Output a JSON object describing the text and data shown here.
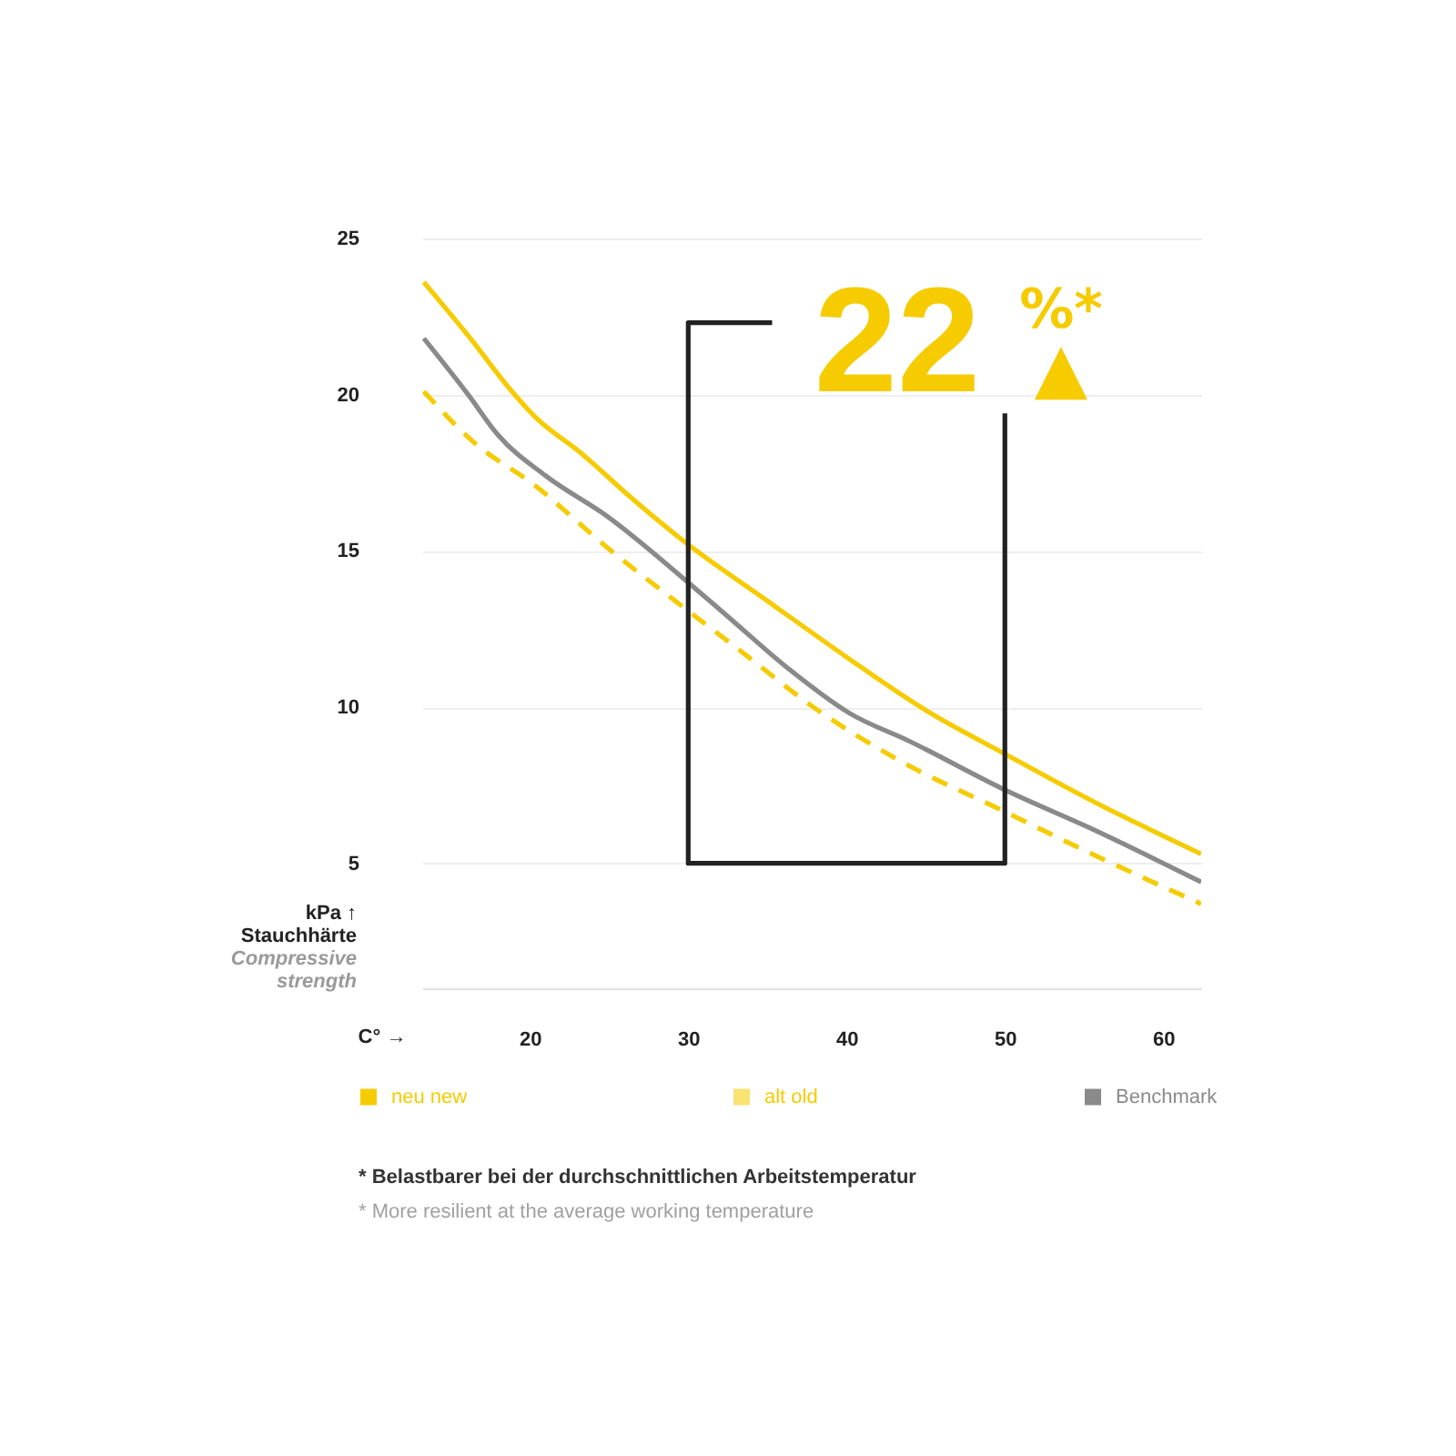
{
  "chart_data": {
    "type": "line",
    "xlabel": "C° →",
    "ylabel": "kPa ↑\nStauchhärte\nCompressive\nstrength",
    "xlim": [
      13.2,
      62.4
    ],
    "xticks": [
      20,
      30,
      40,
      50,
      60
    ],
    "ylim": [
      1,
      25
    ],
    "yticks": [
      5,
      10,
      15,
      20,
      25
    ],
    "grid": "y",
    "legend": "bottom",
    "series": [
      {
        "name": "neu new",
        "color": "#f6cb00",
        "x": [
          13.3,
          16.4,
          18.7,
          20.3,
          23.3,
          26.4,
          30.0,
          35.0,
          40.0,
          45.0,
          50.0,
          55.5,
          62.4
        ],
        "values": [
          23.6,
          21.7,
          20.2,
          19.3,
          18.1,
          16.7,
          15.2,
          13.4,
          11.6,
          9.9,
          8.5,
          7.0,
          5.3
        ]
      },
      {
        "name": "alt old",
        "color": "#f6cb00",
        "line_style": "dashed",
        "x": [
          13.3,
          16.4,
          20.3,
          24.9,
          30.2,
          33.3,
          37.9,
          43.3,
          49.8,
          55.5,
          62.4
        ],
        "values": [
          20.1,
          18.5,
          17.1,
          15.1,
          13.0,
          11.8,
          10.0,
          8.3,
          6.7,
          5.3,
          3.7
        ]
      },
      {
        "name": "Benchmark",
        "color": "#8a8a8a",
        "x": [
          13.3,
          16.1,
          18.0,
          21.0,
          24.9,
          30.2,
          32.5,
          36.4,
          40.2,
          44.0,
          50.2,
          55.5,
          62.4
        ],
        "values": [
          21.8,
          20.0,
          18.7,
          17.4,
          16.1,
          13.9,
          12.9,
          11.2,
          9.8,
          8.9,
          7.3,
          6.1,
          4.4
        ]
      },
      {
        "color": "#222222",
        "x": [
          35.3,
          30,
          30,
          50,
          50
        ],
        "values": [
          22.3,
          22.3,
          5,
          5,
          19.4
        ]
      }
    ],
    "annotations": [
      "22 %* ▲",
      "* Belastbarer bei der durchschnittlichen Arbeitstemperatur",
      "* More resilient at the average working temperature"
    ]
  }
}
